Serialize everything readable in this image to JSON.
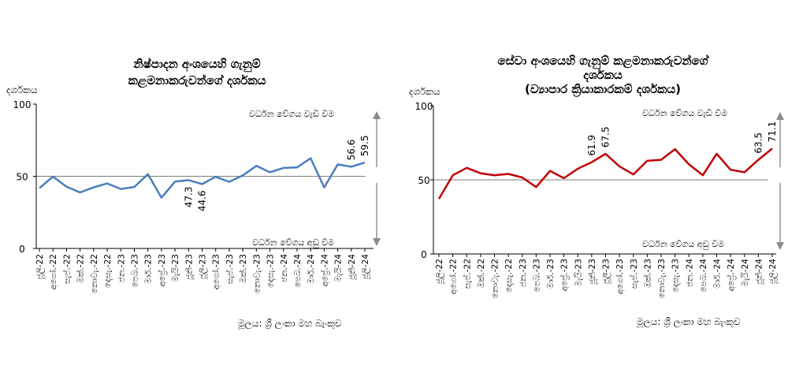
{
  "chart_data": [
    {
      "type": "line",
      "title": [
        "නිෂ්පාදන අංශයෙහි ගැනුම්",
        "කළමනාකරුවන්ගේ දර්ශකය"
      ],
      "ylabel": "දර්ශකය",
      "ylim": [
        0,
        100
      ],
      "yticks": [
        0,
        50,
        100
      ],
      "categories": [
        "ජූලි-22",
        "අගෝ.-22",
        "සැප්.-22",
        "ඔක්.-22",
        "නොවැ.-22",
        "දෙසැ.-22",
        "ජන.-23",
        "පෙබ.-23",
        "මාර්.-23",
        "අප්‍රේ.-23",
        "මැයි-23",
        "ජූනි-23",
        "ජූලි-23",
        "අගෝ.-23",
        "සැප්.-23",
        "ඔක්.-23",
        "නොවැ.-23",
        "දෙසැ.-23",
        "ජන.-24",
        "පෙබ.-24",
        "මාර්.-24",
        "අප්‍රේ.-24",
        "මැයි-24",
        "ජූනි-24",
        "ජූලි-24"
      ],
      "series": [
        {
          "color": "#4a7ebb",
          "values": [
            41.8,
            49.8,
            42.8,
            38.8,
            42.3,
            45.0,
            41.2,
            42.6,
            51.5,
            35.2,
            46.3,
            47.3,
            44.6,
            49.6,
            46.2,
            50.6,
            57.2,
            52.8,
            55.8,
            56.2,
            62.5,
            42.3,
            58.2,
            56.6,
            59.5
          ]
        }
      ],
      "data_labels": [
        {
          "index": 11,
          "text": "47.3"
        },
        {
          "index": 12,
          "text": "44.6"
        },
        {
          "index": 23,
          "text": "56.6"
        },
        {
          "index": 24,
          "text": "59.5"
        }
      ],
      "annotations": {
        "up": "වර්ධන වේගය වැඩි වීම",
        "down": "වර්ධන වේගය අඩු වීම"
      },
      "source": "මූලය: ශ්‍රී ලංකා මහ බැංකුව"
    },
    {
      "type": "line",
      "title": [
        "සේවා අංශයෙහි ගැනුම් කළමනාකරුවන්ගේ",
        "දර්ශකය",
        "(ව්‍යාපාර ක්‍රියාකාරකම් දර්ශකය)"
      ],
      "ylabel": "දර්ශකය",
      "ylim": [
        0,
        100
      ],
      "yticks": [
        0,
        50,
        100
      ],
      "categories": [
        "ජූලි-22",
        "අගෝ.-22",
        "සැප්.-22",
        "ඔක්.-22",
        "නොවැ.-22",
        "දෙසැ.-22",
        "ජන.-23",
        "පෙබ.-23",
        "මාර්.-23",
        "අප්‍රේ.-23",
        "මැයි-23",
        "ජූනි-23",
        "ජූලි-23",
        "අගෝ.-23",
        "සැප්.-23",
        "ඔක්.-23",
        "නොවැ.-23",
        "දෙසැ.-23",
        "ජන.-24",
        "පෙබ.-24",
        "මාර්.-24",
        "අප්‍රේ.-24",
        "මැයි-24",
        "ජූනි-24",
        "ජූලි-24"
      ],
      "series": [
        {
          "color": "#c00000",
          "values": [
            37.2,
            53.1,
            58.1,
            54.4,
            53.1,
            54.0,
            51.6,
            45.1,
            56.0,
            51.1,
            57.5,
            61.9,
            67.5,
            59.1,
            53.6,
            62.8,
            63.5,
            70.7,
            60.4,
            53.1,
            67.6,
            56.8,
            55.1,
            63.5,
            71.1
          ]
        }
      ],
      "data_labels": [
        {
          "index": 11,
          "text": "61.9"
        },
        {
          "index": 12,
          "text": "67.5"
        },
        {
          "index": 23,
          "text": "63.5"
        },
        {
          "index": 24,
          "text": "71.1"
        }
      ],
      "annotations": {
        "up": "වර්ධන වේගය වැඩි වීම",
        "down": "වර්ධන වේගය අඩු වීම"
      },
      "source": "මූලය: ශ්‍රී ලංකා මහ බැංකුව"
    }
  ]
}
